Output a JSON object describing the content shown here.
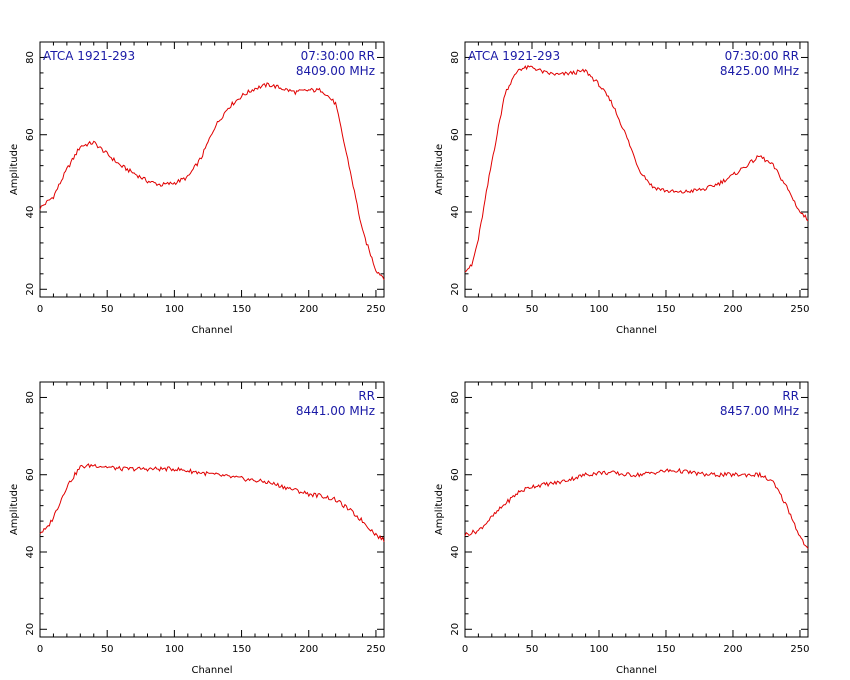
{
  "chart_data": [
    {
      "type": "line",
      "title": "",
      "xlabel": "Channel",
      "ylabel": "Amplitude",
      "xlim": [
        0,
        256
      ],
      "ylim": [
        18,
        84
      ],
      "xticks": [
        0,
        50,
        100,
        150,
        200,
        250
      ],
      "yticks": [
        20,
        40,
        60,
        80
      ],
      "annotation_left": "ATCA 1921-293",
      "annotation_right_line1": "07:30:00  RR",
      "annotation_right_line2": "8409.00  MHz",
      "line_color": "#e00000",
      "series": [
        {
          "x": [
            0,
            10,
            20,
            30,
            40,
            50,
            60,
            70,
            80,
            90,
            100,
            110,
            120,
            130,
            140,
            150,
            160,
            170,
            180,
            190,
            200,
            210,
            220,
            230,
            240,
            250,
            256
          ],
          "values": [
            41,
            44,
            51,
            57,
            58,
            55,
            52,
            50,
            48,
            47,
            47.5,
            49,
            54,
            62,
            67,
            70,
            72,
            73,
            72,
            71,
            71.5,
            71.5,
            68,
            52,
            35,
            25,
            23
          ]
        }
      ]
    },
    {
      "type": "line",
      "title": "",
      "xlabel": "Channel",
      "ylabel": "Amplitude",
      "xlim": [
        0,
        256
      ],
      "ylim": [
        18,
        84
      ],
      "xticks": [
        0,
        50,
        100,
        150,
        200,
        250
      ],
      "yticks": [
        20,
        40,
        60,
        80
      ],
      "annotation_left": "ATCA 1921-293",
      "annotation_right_line1": "07:30:00  RR",
      "annotation_right_line2": "8425.00  MHz",
      "line_color": "#e00000",
      "series": [
        {
          "x": [
            0,
            5,
            10,
            20,
            30,
            40,
            50,
            60,
            70,
            80,
            90,
            100,
            110,
            120,
            130,
            140,
            150,
            160,
            170,
            180,
            190,
            200,
            210,
            220,
            230,
            240,
            250,
            256
          ],
          "values": [
            25,
            26,
            33,
            53,
            71,
            77,
            77.5,
            76,
            75.5,
            76,
            76.5,
            73,
            68,
            60,
            51,
            46.5,
            45.5,
            45,
            45.5,
            46,
            47.5,
            49.5,
            52,
            54.5,
            52,
            46.5,
            40,
            38
          ]
        }
      ]
    },
    {
      "type": "line",
      "title": "",
      "xlabel": "Channel",
      "ylabel": "Amplitude",
      "xlim": [
        0,
        256
      ],
      "ylim": [
        18,
        84
      ],
      "xticks": [
        0,
        50,
        100,
        150,
        200,
        250
      ],
      "yticks": [
        20,
        40,
        60,
        80
      ],
      "annotation_left": "",
      "annotation_right_line1": "RR",
      "annotation_right_line2": "8441.00  MHz",
      "line_color": "#e00000",
      "series": [
        {
          "x": [
            0,
            5,
            10,
            20,
            30,
            40,
            50,
            60,
            70,
            80,
            90,
            100,
            110,
            120,
            130,
            140,
            150,
            160,
            170,
            180,
            190,
            200,
            210,
            220,
            230,
            240,
            250,
            256
          ],
          "values": [
            45,
            46,
            49,
            57,
            62,
            62.5,
            62,
            61.5,
            61.5,
            61.5,
            61.5,
            61.5,
            61,
            60.5,
            60,
            59.5,
            59,
            58.5,
            58,
            57,
            56,
            55,
            54.5,
            53.5,
            51,
            48,
            44.5,
            43
          ]
        }
      ]
    },
    {
      "type": "line",
      "title": "",
      "xlabel": "Channel",
      "ylabel": "Amplitude",
      "xlim": [
        0,
        256
      ],
      "ylim": [
        18,
        84
      ],
      "xticks": [
        0,
        50,
        100,
        150,
        200,
        250
      ],
      "yticks": [
        20,
        40,
        60,
        80
      ],
      "annotation_left": "",
      "annotation_right_line1": "RR",
      "annotation_right_line2": "8457.00  MHz",
      "line_color": "#e00000",
      "series": [
        {
          "x": [
            0,
            10,
            20,
            30,
            40,
            50,
            60,
            70,
            80,
            90,
            100,
            110,
            120,
            130,
            140,
            150,
            160,
            170,
            180,
            190,
            200,
            210,
            220,
            230,
            240,
            250,
            256
          ],
          "values": [
            44.5,
            45.5,
            49,
            52.5,
            55.5,
            57,
            57.5,
            58,
            59,
            60,
            60.5,
            60.5,
            60,
            60,
            60.5,
            61,
            61,
            60.5,
            60,
            60,
            60,
            60,
            60,
            58,
            52,
            44,
            40.5
          ]
        }
      ]
    }
  ]
}
